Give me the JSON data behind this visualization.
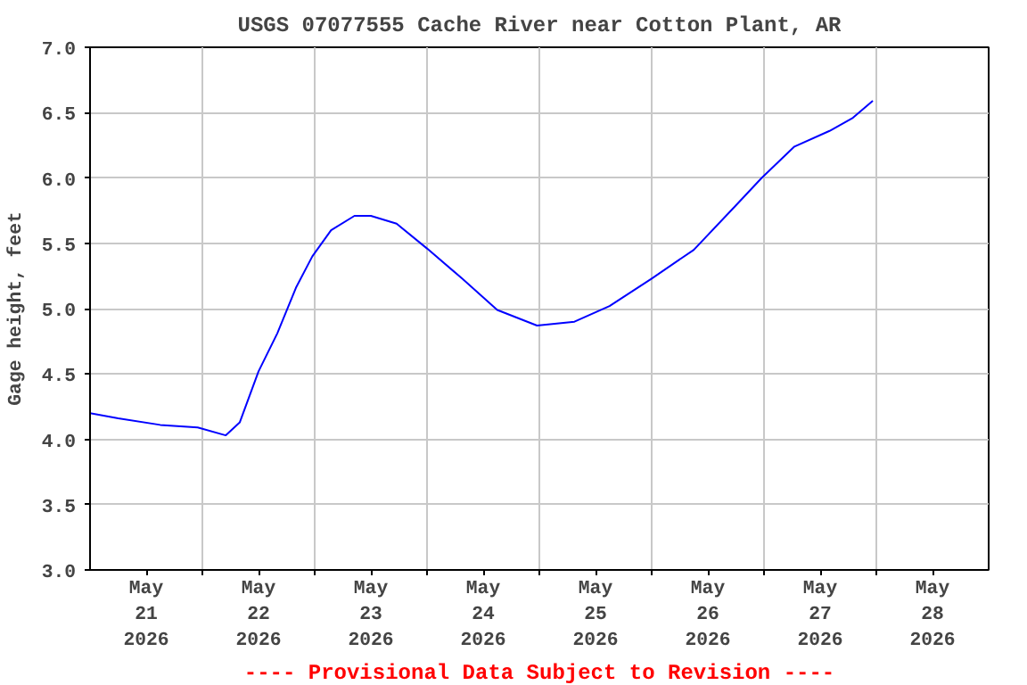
{
  "chart_data": {
    "type": "line",
    "title": "USGS 07077555 Cache River near Cotton Plant, AR",
    "ylabel": "Gage height, feet",
    "annotations": [
      "---- Provisional Data Subject to Revision ----"
    ],
    "x": [
      "2026-05-21T00:00",
      "2026-05-21T06:00",
      "2026-05-21T15:00",
      "2026-05-21T23:00",
      "2026-05-22T05:00",
      "2026-05-22T08:00",
      "2026-05-22T12:00",
      "2026-05-22T16:00",
      "2026-05-22T20:00",
      "2026-05-22T23:30",
      "2026-05-23T03:30",
      "2026-05-23T08:30",
      "2026-05-23T12:00",
      "2026-05-23T17:30",
      "2026-05-24T00:00",
      "2026-05-24T07:30",
      "2026-05-24T15:00",
      "2026-05-24T23:30",
      "2026-05-25T07:30",
      "2026-05-25T15:00",
      "2026-05-26T00:00",
      "2026-05-26T09:00",
      "2026-05-26T18:00",
      "2026-05-26T23:30",
      "2026-05-27T06:30",
      "2026-05-27T14:00",
      "2026-05-27T19:00",
      "2026-05-27T23:15"
    ],
    "series": [
      {
        "color": "#0000ff",
        "values": [
          4.2,
          4.16,
          4.11,
          4.09,
          4.03,
          4.13,
          4.52,
          4.81,
          5.16,
          5.4,
          5.6,
          5.71,
          5.71,
          5.65,
          5.46,
          5.23,
          4.99,
          4.87,
          4.9,
          5.02,
          5.23,
          5.45,
          5.79,
          6.0,
          6.24,
          6.36,
          6.46,
          6.59
        ]
      }
    ],
    "xlim": [
      "2026-05-21T00:00",
      "2026-05-29T00:00"
    ],
    "xticks": [
      {
        "value": "2026-05-22T00:00",
        "label": null
      },
      {
        "value": "2026-05-23T00:00",
        "label": null
      },
      {
        "value": "2026-05-24T00:00",
        "label": null
      },
      {
        "value": "2026-05-25T00:00",
        "label": null
      },
      {
        "value": "2026-05-26T00:00",
        "label": null
      },
      {
        "value": "2026-05-27T00:00",
        "label": null
      },
      {
        "value": "2026-05-28T00:00",
        "label": null
      },
      {
        "value": "2026-05-21T12:00",
        "label": "May\n21\n2026"
      },
      {
        "value": "2026-05-22T12:00",
        "label": "May\n22\n2026"
      },
      {
        "value": "2026-05-23T12:00",
        "label": "May\n23\n2026"
      },
      {
        "value": "2026-05-24T12:00",
        "label": "May\n24\n2026"
      },
      {
        "value": "2026-05-25T12:00",
        "label": "May\n25\n2026"
      },
      {
        "value": "2026-05-26T12:00",
        "label": "May\n26\n2026"
      },
      {
        "value": "2026-05-27T12:00",
        "label": "May\n27\n2026"
      },
      {
        "value": "2026-05-28T12:00",
        "label": "May\n28\n2026"
      }
    ],
    "ylim": [
      3.0,
      7.0
    ],
    "yticks": [
      {
        "value": 3,
        "label": "3.0"
      },
      {
        "value": 3.5,
        "label": "3.5"
      },
      {
        "value": 4,
        "label": "4.0"
      },
      {
        "value": 4.5,
        "label": "4.5"
      },
      {
        "value": 5,
        "label": "5.0"
      },
      {
        "value": 5.5,
        "label": "5.5"
      },
      {
        "value": 6,
        "label": "6.0"
      },
      {
        "value": 6.5,
        "label": "6.5"
      },
      {
        "value": 7,
        "label": "7.0"
      }
    ],
    "grid": true,
    "marker": "none",
    "line_style": "solid"
  }
}
